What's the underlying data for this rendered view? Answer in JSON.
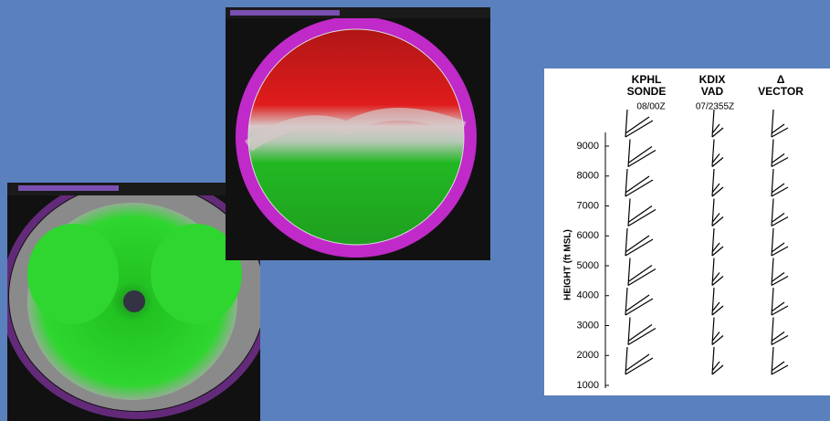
{
  "diagram": {
    "columns": [
      {
        "title": "KPHL",
        "subtitle": "SONDE",
        "time": "08/00Z"
      },
      {
        "title": "KDIX",
        "subtitle": "VAD",
        "time": "07/2355Z"
      },
      {
        "title": "Δ",
        "subtitle": "VECTOR"
      }
    ],
    "y_label": "HEIGHT (ft MSL)",
    "ylim": [
      1000,
      9000
    ],
    "yticks": [
      1000,
      2000,
      3000,
      4000,
      5000,
      6000,
      7000,
      8000,
      9000
    ]
  }
}
